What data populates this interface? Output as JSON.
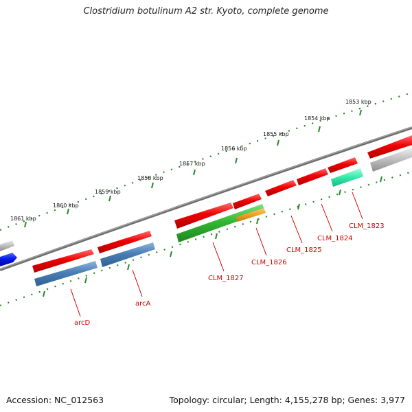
{
  "header": {
    "title": "Clostridium botulinum A2 str. Kyoto, complete genome"
  },
  "footer": {
    "accession": "Accession: NC_012563",
    "stats": "Topology: circular; Length: 4,155,278 bp; Genes: 3,977"
  },
  "scale": {
    "tick_labels": [
      "1861 kbp",
      "1860 kbp",
      "1859 kbp",
      "1858 kbp",
      "1857 kbp",
      "1856 kbp",
      "1855 kbp",
      "1854 kbp",
      "1853 kbp"
    ]
  },
  "genes": [
    {
      "label": "arcD"
    },
    {
      "label": "arcA"
    },
    {
      "label": "CLM_1827"
    },
    {
      "label": "CLM_1826"
    },
    {
      "label": "CLM_1825"
    },
    {
      "label": "CLM_1824"
    },
    {
      "label": "CLM_1823"
    }
  ],
  "colors": {
    "cds": "#e60000",
    "gene_blue": "#4a7fb5",
    "gene_green": "#33b833",
    "gene_orange": "#f0a020",
    "gene_teal": "#33e8a8",
    "gene_grey": "#b8b8b8",
    "backbone": "#707070",
    "tick": "#228822",
    "label": "#d40000"
  }
}
